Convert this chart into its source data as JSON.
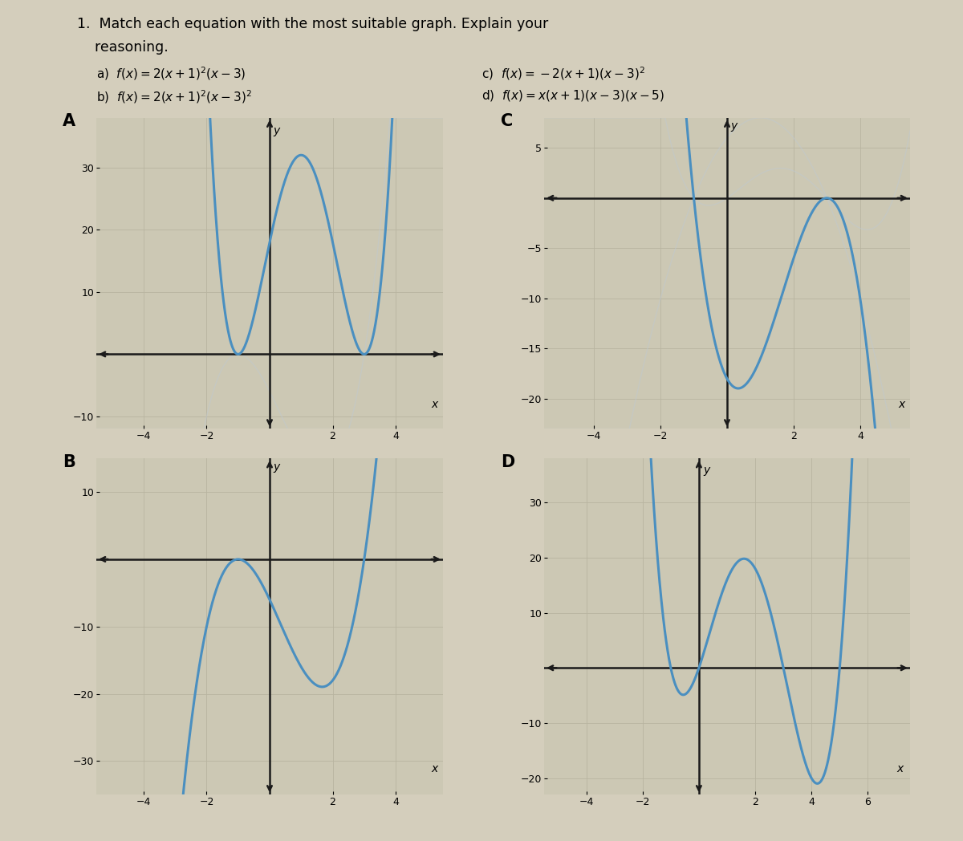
{
  "curve_color": "#4a8fc0",
  "faded_curve_color": "#c0c8d0",
  "bg_paper": "#d4cebc",
  "bg_graph": "#ccc8b4",
  "grid_color": "#b8b4a0",
  "axis_color": "#1a1a1a",
  "text_color": "#1a1a1a",
  "graph_A": {
    "func": "2*(x+1)**2*(x-3)**2",
    "xlim": [
      -5.5,
      5.5
    ],
    "ylim": [
      -12,
      38
    ],
    "xticks": [
      -4,
      -2,
      2,
      4
    ],
    "yticks": [
      -10,
      10,
      20,
      30
    ],
    "label": "A"
  },
  "graph_C": {
    "func": "-2*(x+1)*(x-3)**2",
    "xlim": [
      -5.5,
      5.5
    ],
    "ylim": [
      -23,
      8
    ],
    "xticks": [
      -4,
      -2,
      2,
      4
    ],
    "yticks": [
      -20,
      -15,
      -10,
      -5,
      5
    ],
    "label": "C"
  },
  "graph_B": {
    "func": "2*(x+1)**2*(x-3)",
    "xlim": [
      -5.5,
      5.5
    ],
    "ylim": [
      -35,
      15
    ],
    "xticks": [
      -4,
      -2,
      2,
      4
    ],
    "yticks": [
      -30,
      -20,
      -10,
      10
    ],
    "label": "B"
  },
  "graph_D": {
    "func": "x*(x+1)*(x-3)*(x-5)",
    "xlim": [
      -5.5,
      7.5
    ],
    "ylim": [
      -23,
      38
    ],
    "xticks": [
      -4,
      -2,
      2,
      4,
      6
    ],
    "yticks": [
      -20,
      -10,
      10,
      20,
      30
    ],
    "label": "D"
  }
}
